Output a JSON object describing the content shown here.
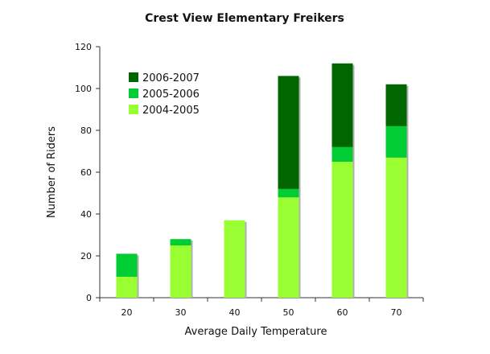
{
  "chart_data": {
    "type": "bar",
    "stacked": true,
    "title": "Crest View Elementary Freikers",
    "xlabel": "Average Daily Temperature",
    "ylabel": "Number of Riders",
    "categories": [
      "20",
      "30",
      "40",
      "50",
      "60",
      "70"
    ],
    "yticks": [
      "0",
      "20",
      "40",
      "60",
      "80",
      "100",
      "120"
    ],
    "ylim": [
      0,
      120
    ],
    "grid": false,
    "legend_position": "top-left",
    "series": [
      {
        "name": "2004-2005",
        "color": "#99ff33",
        "values": [
          10,
          25,
          37,
          48,
          65,
          67
        ]
      },
      {
        "name": "2005-2006",
        "color": "#00cc33",
        "values": [
          11,
          3,
          0,
          4,
          7,
          15
        ]
      },
      {
        "name": "2006-2007",
        "color": "#006600",
        "values": [
          0,
          0,
          0,
          54,
          40,
          20
        ]
      }
    ],
    "legend_order": [
      "2006-2007",
      "2005-2006",
      "2004-2005"
    ]
  }
}
